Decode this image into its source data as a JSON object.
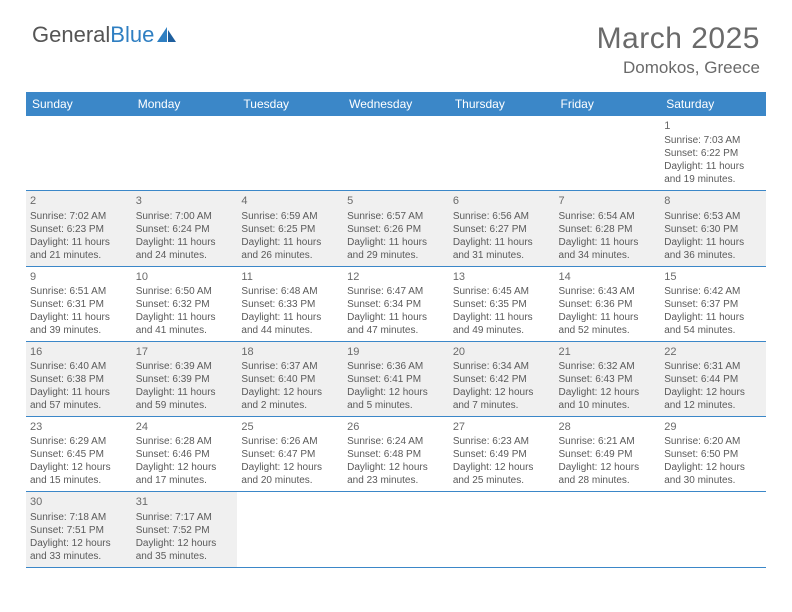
{
  "logo": {
    "text1": "General",
    "text2": "Blue"
  },
  "title": "March 2025",
  "location": "Domokos, Greece",
  "colors": {
    "header_bg": "#3b87c8",
    "header_text": "#ffffff",
    "row_border": "#3b87c8",
    "shaded_bg": "#f0f0f0",
    "text": "#5a5a5a",
    "title_text": "#6a6a6a"
  },
  "weekdays": [
    "Sunday",
    "Monday",
    "Tuesday",
    "Wednesday",
    "Thursday",
    "Friday",
    "Saturday"
  ],
  "weeks": [
    [
      {
        "day": "",
        "text": "",
        "shaded": false
      },
      {
        "day": "",
        "text": "",
        "shaded": false
      },
      {
        "day": "",
        "text": "",
        "shaded": false
      },
      {
        "day": "",
        "text": "",
        "shaded": false
      },
      {
        "day": "",
        "text": "",
        "shaded": false
      },
      {
        "day": "",
        "text": "",
        "shaded": false
      },
      {
        "day": "1",
        "text": "Sunrise: 7:03 AM\nSunset: 6:22 PM\nDaylight: 11 hours and 19 minutes.",
        "shaded": false
      }
    ],
    [
      {
        "day": "2",
        "text": "Sunrise: 7:02 AM\nSunset: 6:23 PM\nDaylight: 11 hours and 21 minutes.",
        "shaded": true
      },
      {
        "day": "3",
        "text": "Sunrise: 7:00 AM\nSunset: 6:24 PM\nDaylight: 11 hours and 24 minutes.",
        "shaded": true
      },
      {
        "day": "4",
        "text": "Sunrise: 6:59 AM\nSunset: 6:25 PM\nDaylight: 11 hours and 26 minutes.",
        "shaded": true
      },
      {
        "day": "5",
        "text": "Sunrise: 6:57 AM\nSunset: 6:26 PM\nDaylight: 11 hours and 29 minutes.",
        "shaded": true
      },
      {
        "day": "6",
        "text": "Sunrise: 6:56 AM\nSunset: 6:27 PM\nDaylight: 11 hours and 31 minutes.",
        "shaded": true
      },
      {
        "day": "7",
        "text": "Sunrise: 6:54 AM\nSunset: 6:28 PM\nDaylight: 11 hours and 34 minutes.",
        "shaded": true
      },
      {
        "day": "8",
        "text": "Sunrise: 6:53 AM\nSunset: 6:30 PM\nDaylight: 11 hours and 36 minutes.",
        "shaded": true
      }
    ],
    [
      {
        "day": "9",
        "text": "Sunrise: 6:51 AM\nSunset: 6:31 PM\nDaylight: 11 hours and 39 minutes.",
        "shaded": false
      },
      {
        "day": "10",
        "text": "Sunrise: 6:50 AM\nSunset: 6:32 PM\nDaylight: 11 hours and 41 minutes.",
        "shaded": false
      },
      {
        "day": "11",
        "text": "Sunrise: 6:48 AM\nSunset: 6:33 PM\nDaylight: 11 hours and 44 minutes.",
        "shaded": false
      },
      {
        "day": "12",
        "text": "Sunrise: 6:47 AM\nSunset: 6:34 PM\nDaylight: 11 hours and 47 minutes.",
        "shaded": false
      },
      {
        "day": "13",
        "text": "Sunrise: 6:45 AM\nSunset: 6:35 PM\nDaylight: 11 hours and 49 minutes.",
        "shaded": false
      },
      {
        "day": "14",
        "text": "Sunrise: 6:43 AM\nSunset: 6:36 PM\nDaylight: 11 hours and 52 minutes.",
        "shaded": false
      },
      {
        "day": "15",
        "text": "Sunrise: 6:42 AM\nSunset: 6:37 PM\nDaylight: 11 hours and 54 minutes.",
        "shaded": false
      }
    ],
    [
      {
        "day": "16",
        "text": "Sunrise: 6:40 AM\nSunset: 6:38 PM\nDaylight: 11 hours and 57 minutes.",
        "shaded": true
      },
      {
        "day": "17",
        "text": "Sunrise: 6:39 AM\nSunset: 6:39 PM\nDaylight: 11 hours and 59 minutes.",
        "shaded": true
      },
      {
        "day": "18",
        "text": "Sunrise: 6:37 AM\nSunset: 6:40 PM\nDaylight: 12 hours and 2 minutes.",
        "shaded": true
      },
      {
        "day": "19",
        "text": "Sunrise: 6:36 AM\nSunset: 6:41 PM\nDaylight: 12 hours and 5 minutes.",
        "shaded": true
      },
      {
        "day": "20",
        "text": "Sunrise: 6:34 AM\nSunset: 6:42 PM\nDaylight: 12 hours and 7 minutes.",
        "shaded": true
      },
      {
        "day": "21",
        "text": "Sunrise: 6:32 AM\nSunset: 6:43 PM\nDaylight: 12 hours and 10 minutes.",
        "shaded": true
      },
      {
        "day": "22",
        "text": "Sunrise: 6:31 AM\nSunset: 6:44 PM\nDaylight: 12 hours and 12 minutes.",
        "shaded": true
      }
    ],
    [
      {
        "day": "23",
        "text": "Sunrise: 6:29 AM\nSunset: 6:45 PM\nDaylight: 12 hours and 15 minutes.",
        "shaded": false
      },
      {
        "day": "24",
        "text": "Sunrise: 6:28 AM\nSunset: 6:46 PM\nDaylight: 12 hours and 17 minutes.",
        "shaded": false
      },
      {
        "day": "25",
        "text": "Sunrise: 6:26 AM\nSunset: 6:47 PM\nDaylight: 12 hours and 20 minutes.",
        "shaded": false
      },
      {
        "day": "26",
        "text": "Sunrise: 6:24 AM\nSunset: 6:48 PM\nDaylight: 12 hours and 23 minutes.",
        "shaded": false
      },
      {
        "day": "27",
        "text": "Sunrise: 6:23 AM\nSunset: 6:49 PM\nDaylight: 12 hours and 25 minutes.",
        "shaded": false
      },
      {
        "day": "28",
        "text": "Sunrise: 6:21 AM\nSunset: 6:49 PM\nDaylight: 12 hours and 28 minutes.",
        "shaded": false
      },
      {
        "day": "29",
        "text": "Sunrise: 6:20 AM\nSunset: 6:50 PM\nDaylight: 12 hours and 30 minutes.",
        "shaded": false
      }
    ],
    [
      {
        "day": "30",
        "text": "Sunrise: 7:18 AM\nSunset: 7:51 PM\nDaylight: 12 hours and 33 minutes.",
        "shaded": true
      },
      {
        "day": "31",
        "text": "Sunrise: 7:17 AM\nSunset: 7:52 PM\nDaylight: 12 hours and 35 minutes.",
        "shaded": true
      },
      {
        "day": "",
        "text": "",
        "shaded": false
      },
      {
        "day": "",
        "text": "",
        "shaded": false
      },
      {
        "day": "",
        "text": "",
        "shaded": false
      },
      {
        "day": "",
        "text": "",
        "shaded": false
      },
      {
        "day": "",
        "text": "",
        "shaded": false
      }
    ]
  ]
}
